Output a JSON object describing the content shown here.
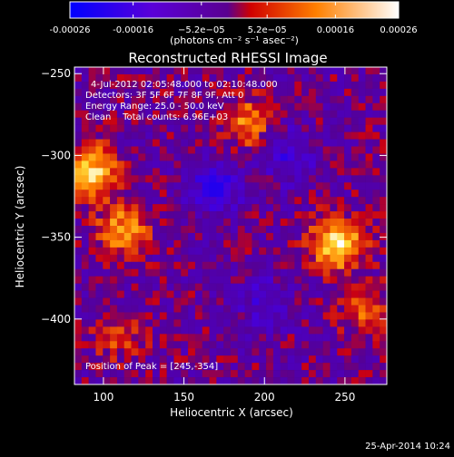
{
  "colorbar": {
    "tick_values": [
      -0.00026,
      -0.00016,
      -5.2e-05,
      5.2e-05,
      0.00016,
      0.00026
    ],
    "tick_labels": [
      "-0.00026",
      "-0.00016",
      "−5.2e−05",
      "5.2e−05",
      "0.00016",
      "0.00026"
    ],
    "range": [
      -0.00026,
      0.00026
    ],
    "units_label": "(photons cm⁻² s⁻¹ asec⁻²)",
    "colormap": [
      "#0000ff",
      "#6a00ff",
      "#ff0000",
      "#ff8c00",
      "#ffffff"
    ]
  },
  "info": {
    "time_range": "4-Jul-2012 02:05:48.000 to 02:10:48.000",
    "detectors": "Detectors: 3F 5F 6F 7F 8F 9F, Att 0",
    "energy": "Energy Range: 25.0 - 50.0 keV",
    "clean": "Clean    Total counts: 6.96E+03",
    "peak": "Position of Peak = [245,-354]"
  },
  "footer": {
    "date": "25-Apr-2014 10:24"
  },
  "chart_data": {
    "type": "heatmap",
    "title": "Reconstructed RHESSI Image",
    "xlabel": "Heliocentric X (arcsec)",
    "ylabel": "Heliocentric Y (arcsec)",
    "xlim": [
      82,
      276
    ],
    "ylim": [
      -440,
      -246
    ],
    "x_ticks": [
      100,
      150,
      200,
      250
    ],
    "y_ticks": [
      -250,
      -300,
      -350,
      -400
    ],
    "value_units": "photons cm-2 s-1 asec-2",
    "value_range": [
      -0.00026,
      0.00026
    ],
    "grid": false,
    "peak": [
      245,
      -354
    ],
    "bright_sources": [
      {
        "x": 245,
        "y": -354,
        "value": 0.00026
      },
      {
        "x": 92,
        "y": -310,
        "value": 0.00024
      },
      {
        "x": 112,
        "y": -346,
        "value": 0.00018
      },
      {
        "x": 190,
        "y": -280,
        "value": 0.00015
      },
      {
        "x": 265,
        "y": -395,
        "value": 0.00012
      },
      {
        "x": 110,
        "y": -410,
        "value": 0.0001
      }
    ],
    "dark_sources": [
      {
        "x": 170,
        "y": -320,
        "value": -0.00016
      },
      {
        "x": 215,
        "y": -300,
        "value": -0.00012
      },
      {
        "x": 200,
        "y": -390,
        "value": -0.0001
      }
    ]
  }
}
